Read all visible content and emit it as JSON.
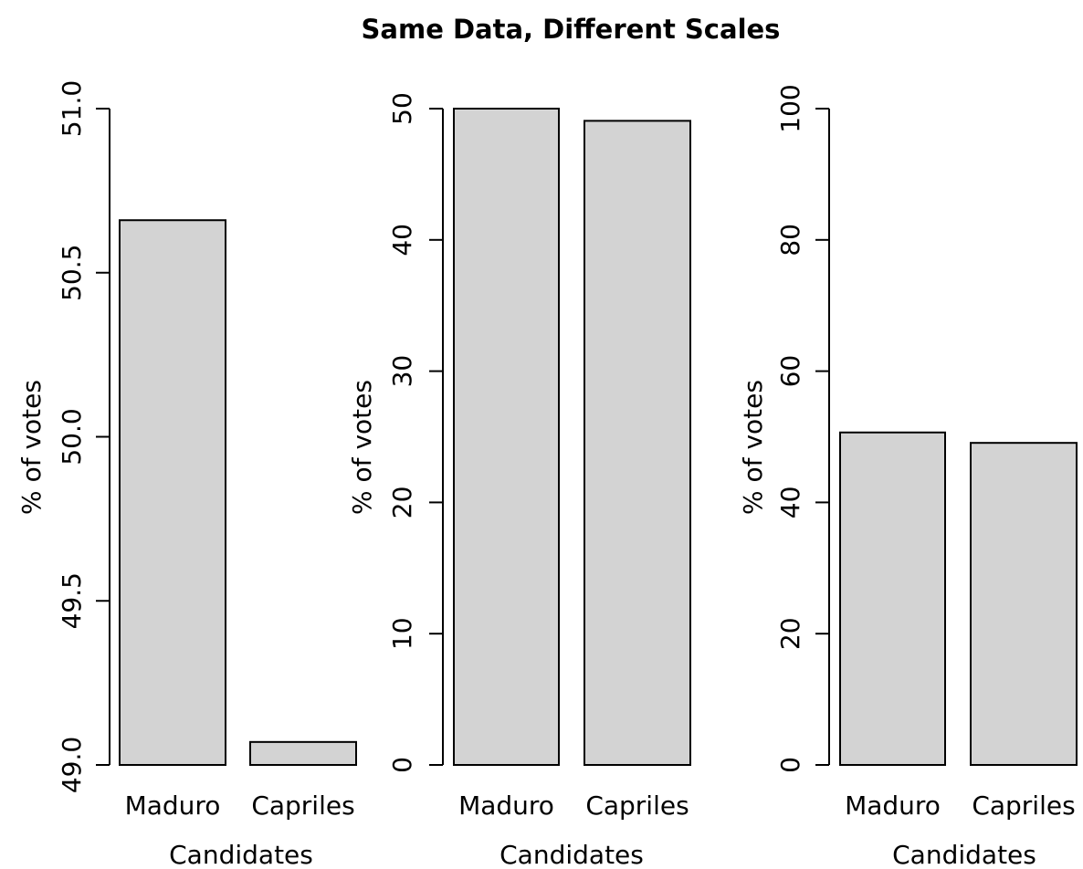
{
  "title": "Same Data, Different Scales",
  "colors": {
    "bar_fill": "#d3d3d3",
    "bar_stroke": "#000000",
    "background": "#ffffff"
  },
  "chart_data": [
    {
      "type": "bar",
      "categories": [
        "Maduro",
        "Capriles"
      ],
      "values": [
        50.66,
        49.07
      ],
      "xlabel": "Candidates",
      "ylabel": "% of votes",
      "ylim": [
        49.0,
        51.0
      ],
      "yticks": [
        "49.0",
        "49.5",
        "50.0",
        "50.5",
        "51.0"
      ],
      "grid": false,
      "legend": "none"
    },
    {
      "type": "bar",
      "categories": [
        "Maduro",
        "Capriles"
      ],
      "values": [
        50.66,
        49.07
      ],
      "xlabel": "Candidates",
      "ylabel": "% of votes",
      "ylim": [
        0,
        50
      ],
      "yticks": [
        "0",
        "10",
        "20",
        "30",
        "40",
        "50"
      ],
      "grid": false,
      "legend": "none"
    },
    {
      "type": "bar",
      "categories": [
        "Maduro",
        "Capriles"
      ],
      "values": [
        50.66,
        49.07
      ],
      "xlabel": "Candidates",
      "ylabel": "% of votes",
      "ylim": [
        0,
        100
      ],
      "yticks": [
        "0",
        "20",
        "40",
        "60",
        "80",
        "100"
      ],
      "grid": false,
      "legend": "none"
    }
  ]
}
